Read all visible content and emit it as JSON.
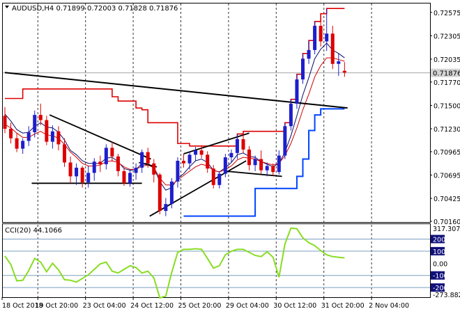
{
  "main": {
    "header": "AUDUSD,H4  0.71899 0.72003 0.71828 0.71876",
    "price_axis": [
      "0.72575",
      "0.72305",
      "0.72035",
      "0.71770",
      "0.71500",
      "0.71230",
      "0.70965",
      "0.70695",
      "0.70425",
      "0.70160"
    ],
    "current_price": "0.71876",
    "current_price_value": 0.71876
  },
  "indicator": {
    "header": "CCI(20) 44.1066",
    "axis": [
      "317.3079",
      "200",
      "100",
      "0.00",
      "-100",
      "-200",
      "-273.8825"
    ],
    "levels": [
      200,
      100,
      -100,
      -200
    ]
  },
  "time_axis": [
    "18 Oct 2018",
    "19 Oct 20:00",
    "23 Oct 04:00",
    "24 Oct 12:00",
    "25 Oct 20:00",
    "29 Oct 04:00",
    "30 Oct 12:00",
    "31 Oct 20:00",
    "2 Nov 04:00"
  ],
  "colors": {
    "bull_candle": "#1e1ecc",
    "bear_candle": "#dd0000",
    "upper_channel": "#dd0000",
    "lower_channel": "#0044ff",
    "mid_band": "#0a0a66",
    "fast_ma": "#cc0000",
    "cci_line": "#88dd22",
    "price_tag": "#d4d4d4",
    "level_tag": "#10107a"
  },
  "chart_data": {
    "type": "candlestick",
    "symbol": "AUDUSD",
    "timeframe": "H4",
    "ylim": [
      0.7016,
      0.7267
    ],
    "candles": [
      [
        0.7138,
        0.7148,
        0.7118,
        0.7123
      ],
      [
        0.7123,
        0.713,
        0.7106,
        0.7112
      ],
      [
        0.7112,
        0.7118,
        0.7096,
        0.71
      ],
      [
        0.71,
        0.7112,
        0.7094,
        0.7109
      ],
      [
        0.7109,
        0.7126,
        0.7103,
        0.7119
      ],
      [
        0.7119,
        0.7144,
        0.7113,
        0.7139
      ],
      [
        0.7139,
        0.7152,
        0.7127,
        0.7133
      ],
      [
        0.7133,
        0.7138,
        0.7104,
        0.7108
      ],
      [
        0.7108,
        0.7127,
        0.71,
        0.712
      ],
      [
        0.712,
        0.7126,
        0.7098,
        0.7105
      ],
      [
        0.7105,
        0.7112,
        0.7079,
        0.7084
      ],
      [
        0.7084,
        0.7091,
        0.706,
        0.7068
      ],
      [
        0.7068,
        0.7083,
        0.7058,
        0.7078
      ],
      [
        0.7078,
        0.708,
        0.7055,
        0.7061
      ],
      [
        0.7061,
        0.708,
        0.7055,
        0.7072
      ],
      [
        0.7072,
        0.7089,
        0.7063,
        0.7085
      ],
      [
        0.7085,
        0.7092,
        0.7073,
        0.7082
      ],
      [
        0.7082,
        0.7105,
        0.7076,
        0.7101
      ],
      [
        0.7101,
        0.7108,
        0.7085,
        0.7091
      ],
      [
        0.7091,
        0.7094,
        0.7068,
        0.7074
      ],
      [
        0.7074,
        0.7078,
        0.7057,
        0.706
      ],
      [
        0.706,
        0.7076,
        0.7056,
        0.7072
      ],
      [
        0.7072,
        0.7083,
        0.7064,
        0.7078
      ],
      [
        0.7078,
        0.7099,
        0.7072,
        0.7096
      ],
      [
        0.7096,
        0.7101,
        0.7078,
        0.7083
      ],
      [
        0.7083,
        0.7088,
        0.7061,
        0.707
      ],
      [
        0.707,
        0.7072,
        0.7024,
        0.7028
      ],
      [
        0.7028,
        0.7043,
        0.7022,
        0.7036
      ],
      [
        0.7036,
        0.7066,
        0.7031,
        0.7062
      ],
      [
        0.7062,
        0.709,
        0.7055,
        0.7086
      ],
      [
        0.7086,
        0.7094,
        0.7078,
        0.7083
      ],
      [
        0.7083,
        0.7096,
        0.7076,
        0.7093
      ],
      [
        0.7093,
        0.7102,
        0.7086,
        0.7098
      ],
      [
        0.7098,
        0.7104,
        0.7089,
        0.7093
      ],
      [
        0.7093,
        0.7097,
        0.7072,
        0.7077
      ],
      [
        0.7077,
        0.7081,
        0.7054,
        0.7058
      ],
      [
        0.7058,
        0.7074,
        0.7054,
        0.7071
      ],
      [
        0.7071,
        0.7094,
        0.7067,
        0.709
      ],
      [
        0.709,
        0.7099,
        0.7084,
        0.7095
      ],
      [
        0.7095,
        0.7117,
        0.7088,
        0.7111
      ],
      [
        0.7111,
        0.712,
        0.7095,
        0.7099
      ],
      [
        0.7099,
        0.7103,
        0.7075,
        0.7081
      ],
      [
        0.7081,
        0.7092,
        0.7074,
        0.7088
      ],
      [
        0.7088,
        0.7098,
        0.7071,
        0.7075
      ],
      [
        0.7075,
        0.7084,
        0.7068,
        0.708
      ],
      [
        0.708,
        0.7083,
        0.7069,
        0.7073
      ],
      [
        0.7073,
        0.7098,
        0.707,
        0.7092
      ],
      [
        0.7092,
        0.713,
        0.7088,
        0.7126
      ],
      [
        0.7126,
        0.7157,
        0.7121,
        0.7152
      ],
      [
        0.7152,
        0.7186,
        0.7146,
        0.718
      ],
      [
        0.718,
        0.721,
        0.7175,
        0.7204
      ],
      [
        0.7204,
        0.7225,
        0.7198,
        0.7214
      ],
      [
        0.7214,
        0.7247,
        0.7209,
        0.7242
      ],
      [
        0.7242,
        0.7256,
        0.7218,
        0.7224
      ],
      [
        0.7224,
        0.7262,
        0.7213,
        0.7233
      ],
      [
        0.7233,
        0.7242,
        0.7192,
        0.7198
      ],
      [
        0.7198,
        0.721,
        0.7184,
        0.7201
      ],
      [
        0.719,
        0.72,
        0.7183,
        0.7188
      ]
    ],
    "upper_channel": [
      0.7158,
      0.7158,
      0.7158,
      0.7169,
      0.7169,
      0.7169,
      0.7169,
      0.7169,
      0.7169,
      0.7169,
      0.7169,
      0.7169,
      0.7169,
      0.7169,
      0.7169,
      0.7169,
      0.7169,
      0.7169,
      0.716,
      0.7155,
      0.7155,
      0.7155,
      0.7147,
      0.7145,
      0.713,
      0.713,
      0.713,
      0.713,
      0.713,
      0.7106,
      0.7106,
      0.7103,
      0.7103,
      0.7103,
      0.7103,
      0.7103,
      0.7103,
      0.7103,
      0.7103,
      0.7117,
      0.712,
      0.712,
      0.712,
      0.712,
      0.712,
      0.712,
      0.712,
      0.713,
      0.7157,
      0.7186,
      0.721,
      0.7225,
      0.7247,
      0.7256,
      0.7262,
      0.7262,
      0.7262,
      0.7262
    ],
    "lower_channel": [
      null,
      null,
      null,
      null,
      null,
      null,
      null,
      null,
      null,
      null,
      null,
      null,
      null,
      null,
      null,
      null,
      null,
      null,
      null,
      null,
      null,
      null,
      null,
      null,
      null,
      null,
      null,
      null,
      null,
      null,
      0.7022,
      0.7022,
      0.7022,
      0.7022,
      0.7022,
      0.7022,
      0.7022,
      0.7022,
      0.7022,
      0.7022,
      0.7022,
      0.7022,
      0.7054,
      0.7054,
      0.7054,
      0.7054,
      0.7054,
      0.7054,
      0.7054,
      0.7068,
      0.7088,
      0.7121,
      0.7139,
      0.7146,
      0.7146,
      0.7146,
      0.7146,
      0.7146
    ],
    "mid_band": [
      0.714,
      0.7132,
      0.7122,
      0.7118,
      0.7119,
      0.7126,
      0.713,
      0.7125,
      0.7124,
      0.7119,
      0.711,
      0.7098,
      0.7093,
      0.7086,
      0.7083,
      0.7083,
      0.7083,
      0.7089,
      0.709,
      0.7085,
      0.7077,
      0.7075,
      0.7076,
      0.7083,
      0.7083,
      0.7078,
      0.7062,
      0.7052,
      0.7055,
      0.7066,
      0.7071,
      0.7079,
      0.7086,
      0.7088,
      0.7084,
      0.7075,
      0.7073,
      0.7078,
      0.7084,
      0.7093,
      0.7095,
      0.7091,
      0.709,
      0.7085,
      0.7082,
      0.7079,
      0.7083,
      0.7096,
      0.7115,
      0.7138,
      0.7162,
      0.7182,
      0.7204,
      0.7215,
      0.7222,
      0.7214,
      0.721,
      0.7205
    ],
    "fast_ma": [
      0.7128,
      0.7124,
      0.7118,
      0.7113,
      0.7113,
      0.7117,
      0.712,
      0.7116,
      0.7115,
      0.7112,
      0.7105,
      0.7096,
      0.709,
      0.7083,
      0.708,
      0.708,
      0.7081,
      0.7085,
      0.7086,
      0.7084,
      0.7079,
      0.7076,
      0.7076,
      0.708,
      0.7081,
      0.7078,
      0.7066,
      0.7058,
      0.7058,
      0.7064,
      0.7069,
      0.7074,
      0.7079,
      0.7082,
      0.708,
      0.7075,
      0.7073,
      0.7076,
      0.708,
      0.7087,
      0.709,
      0.7089,
      0.7088,
      0.7085,
      0.7083,
      0.7081,
      0.7083,
      0.7092,
      0.7106,
      0.7124,
      0.7145,
      0.7163,
      0.7183,
      0.7196,
      0.7205,
      0.7205,
      0.7203,
      0.7201
    ],
    "trendlines": [
      [
        0,
        0.7188,
        57.5,
        0.7147
      ],
      [
        7.5,
        0.7139,
        24.5,
        0.7088
      ],
      [
        4.5,
        0.706,
        23,
        0.706
      ],
      [
        22.5,
        0.7084,
        25.5,
        0.7079
      ],
      [
        24.3,
        0.7022,
        40.5,
        0.7086
      ],
      [
        30,
        0.7094,
        41,
        0.7118
      ],
      [
        37,
        0.7074,
        46.5,
        0.7068
      ]
    ],
    "cci": [
      60,
      -10,
      -145,
      -140,
      -60,
      40,
      10,
      -70,
      0,
      -55,
      -135,
      -140,
      -155,
      -125,
      -95,
      -50,
      -5,
      10,
      -65,
      -80,
      -50,
      -20,
      -35,
      -80,
      -65,
      -120,
      -285,
      -270,
      -75,
      90,
      115,
      115,
      120,
      115,
      40,
      -40,
      -20,
      70,
      100,
      115,
      115,
      90,
      65,
      55,
      95,
      50,
      -115,
      160,
      290,
      285,
      210,
      170,
      145,
      105,
      70,
      55,
      50,
      45
    ],
    "cci_ylim": [
      -273.8825,
      317.3079
    ],
    "x_labels": [
      "18 Oct 2018",
      "19 Oct 20:00",
      "23 Oct 04:00",
      "24 Oct 12:00",
      "25 Oct 20:00",
      "29 Oct 04:00",
      "30 Oct 12:00",
      "31 Oct 20:00",
      "2 Nov 04:00"
    ],
    "x_label_index": [
      0,
      6,
      14,
      22,
      30,
      38,
      46,
      54,
      62
    ]
  }
}
